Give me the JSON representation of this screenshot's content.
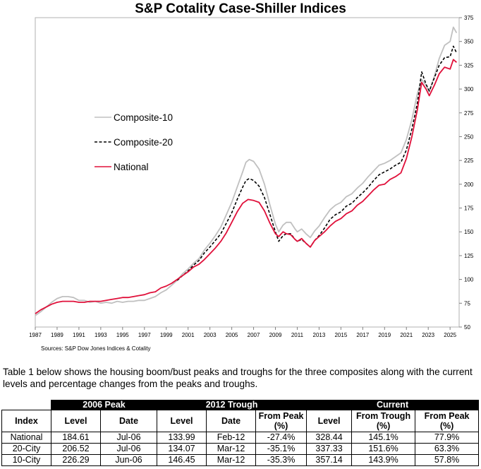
{
  "chart_data": {
    "type": "line",
    "title": "S&P Cotality Case-Shiller Indices",
    "source": "Sources: S&P Dow Jones Indices & Cotality",
    "xlim": [
      1987.0,
      2025.83
    ],
    "ylim": [
      50,
      375
    ],
    "x_ticks": [
      "1987",
      "1989",
      "1991",
      "1993",
      "1995",
      "1997",
      "1999",
      "2001",
      "2003",
      "2005",
      "2007",
      "2009",
      "2011",
      "2013",
      "2015",
      "2017",
      "2019",
      "2021",
      "2023",
      "2025"
    ],
    "y_ticks": [
      "375",
      "350",
      "325",
      "300",
      "275",
      "250",
      "225",
      "200",
      "175",
      "150",
      "125",
      "100",
      "75",
      "50"
    ],
    "legend_position": "center-left",
    "series": [
      {
        "name": "Composite-10",
        "color": "#c0c0c0",
        "dash": "solid",
        "points": [
          [
            1987.0,
            62
          ],
          [
            1987.5,
            66
          ],
          [
            1988.0,
            71
          ],
          [
            1988.5,
            76
          ],
          [
            1989.0,
            80
          ],
          [
            1989.5,
            82
          ],
          [
            1990.0,
            82
          ],
          [
            1990.5,
            81
          ],
          [
            1991.0,
            78
          ],
          [
            1991.5,
            78
          ],
          [
            1992.0,
            76
          ],
          [
            1992.5,
            77
          ],
          [
            1993.0,
            75
          ],
          [
            1993.5,
            76
          ],
          [
            1994.0,
            75
          ],
          [
            1994.5,
            77
          ],
          [
            1995.0,
            76
          ],
          [
            1995.5,
            77
          ],
          [
            1996.0,
            77
          ],
          [
            1996.5,
            78
          ],
          [
            1997.0,
            78
          ],
          [
            1997.5,
            80
          ],
          [
            1998.0,
            82
          ],
          [
            1998.5,
            86
          ],
          [
            1999.0,
            89
          ],
          [
            1999.5,
            94
          ],
          [
            2000.0,
            99
          ],
          [
            2000.5,
            106
          ],
          [
            2001.0,
            111
          ],
          [
            2001.5,
            117
          ],
          [
            2002.0,
            122
          ],
          [
            2002.5,
            131
          ],
          [
            2003.0,
            138
          ],
          [
            2003.5,
            146
          ],
          [
            2004.0,
            155
          ],
          [
            2004.5,
            168
          ],
          [
            2005.0,
            181
          ],
          [
            2005.5,
            197
          ],
          [
            2006.0,
            213
          ],
          [
            2006.3,
            223
          ],
          [
            2006.6,
            226
          ],
          [
            2007.0,
            224
          ],
          [
            2007.5,
            216
          ],
          [
            2008.0,
            200
          ],
          [
            2008.5,
            178
          ],
          [
            2009.0,
            158
          ],
          [
            2009.3,
            150
          ],
          [
            2009.7,
            157
          ],
          [
            2010.0,
            160
          ],
          [
            2010.4,
            160
          ],
          [
            2010.8,
            153
          ],
          [
            2011.0,
            150
          ],
          [
            2011.4,
            153
          ],
          [
            2011.8,
            148
          ],
          [
            2012.2,
            144
          ],
          [
            2012.6,
            151
          ],
          [
            2013.0,
            156
          ],
          [
            2013.5,
            165
          ],
          [
            2014.0,
            173
          ],
          [
            2014.5,
            178
          ],
          [
            2015.0,
            181
          ],
          [
            2015.5,
            187
          ],
          [
            2016.0,
            190
          ],
          [
            2016.5,
            196
          ],
          [
            2017.0,
            201
          ],
          [
            2017.5,
            208
          ],
          [
            2018.0,
            214
          ],
          [
            2018.5,
            220
          ],
          [
            2019.0,
            222
          ],
          [
            2019.5,
            225
          ],
          [
            2020.0,
            229
          ],
          [
            2020.5,
            233
          ],
          [
            2021.0,
            247
          ],
          [
            2021.5,
            268
          ],
          [
            2022.0,
            295
          ],
          [
            2022.4,
            310
          ],
          [
            2022.8,
            304
          ],
          [
            2023.1,
            297
          ],
          [
            2023.6,
            315
          ],
          [
            2024.0,
            332
          ],
          [
            2024.5,
            346
          ],
          [
            2025.0,
            350
          ],
          [
            2025.3,
            365
          ],
          [
            2025.6,
            359
          ]
        ]
      },
      {
        "name": "Composite-20",
        "color": "#000000",
        "dash": "dashed",
        "points": [
          [
            2000.0,
            99
          ],
          [
            2000.5,
            104
          ],
          [
            2001.0,
            109
          ],
          [
            2001.5,
            115
          ],
          [
            2002.0,
            120
          ],
          [
            2002.5,
            128
          ],
          [
            2003.0,
            134
          ],
          [
            2003.5,
            141
          ],
          [
            2004.0,
            148
          ],
          [
            2004.5,
            159
          ],
          [
            2005.0,
            170
          ],
          [
            2005.5,
            184
          ],
          [
            2006.0,
            197
          ],
          [
            2006.3,
            204
          ],
          [
            2006.6,
            206
          ],
          [
            2007.0,
            204
          ],
          [
            2007.5,
            198
          ],
          [
            2008.0,
            186
          ],
          [
            2008.5,
            168
          ],
          [
            2009.0,
            150
          ],
          [
            2009.3,
            140
          ],
          [
            2009.7,
            146
          ],
          [
            2010.0,
            148
          ],
          [
            2010.4,
            148
          ],
          [
            2010.8,
            142
          ],
          [
            2011.0,
            140
          ],
          [
            2011.4,
            142
          ],
          [
            2011.8,
            138
          ],
          [
            2012.2,
            134
          ],
          [
            2012.6,
            141
          ],
          [
            2013.0,
            146
          ],
          [
            2013.5,
            154
          ],
          [
            2014.0,
            163
          ],
          [
            2014.5,
            168
          ],
          [
            2015.0,
            171
          ],
          [
            2015.5,
            177
          ],
          [
            2016.0,
            180
          ],
          [
            2016.5,
            186
          ],
          [
            2017.0,
            191
          ],
          [
            2017.5,
            197
          ],
          [
            2018.0,
            204
          ],
          [
            2018.5,
            210
          ],
          [
            2019.0,
            213
          ],
          [
            2019.5,
            216
          ],
          [
            2020.0,
            220
          ],
          [
            2020.5,
            223
          ],
          [
            2021.0,
            236
          ],
          [
            2021.5,
            258
          ],
          [
            2022.0,
            285
          ],
          [
            2022.4,
            318
          ],
          [
            2022.8,
            305
          ],
          [
            2023.1,
            298
          ],
          [
            2023.6,
            313
          ],
          [
            2024.0,
            325
          ],
          [
            2024.5,
            333
          ],
          [
            2025.0,
            334
          ],
          [
            2025.3,
            345
          ],
          [
            2025.6,
            338
          ]
        ]
      },
      {
        "name": "National",
        "color": "#e0103a",
        "dash": "solid",
        "points": [
          [
            1987.0,
            64
          ],
          [
            1987.5,
            68
          ],
          [
            1988.0,
            71
          ],
          [
            1988.5,
            74
          ],
          [
            1989.0,
            76
          ],
          [
            1989.5,
            77
          ],
          [
            1990.0,
            77
          ],
          [
            1990.5,
            77
          ],
          [
            1991.0,
            76
          ],
          [
            1991.5,
            76
          ],
          [
            1992.0,
            77
          ],
          [
            1992.5,
            77
          ],
          [
            1993.0,
            77
          ],
          [
            1993.5,
            78
          ],
          [
            1994.0,
            79
          ],
          [
            1994.5,
            80
          ],
          [
            1995.0,
            81
          ],
          [
            1995.5,
            81
          ],
          [
            1996.0,
            82
          ],
          [
            1996.5,
            83
          ],
          [
            1997.0,
            84
          ],
          [
            1997.5,
            86
          ],
          [
            1998.0,
            87
          ],
          [
            1998.5,
            91
          ],
          [
            1999.0,
            93
          ],
          [
            1999.5,
            96
          ],
          [
            2000.0,
            100
          ],
          [
            2000.5,
            104
          ],
          [
            2001.0,
            108
          ],
          [
            2001.5,
            113
          ],
          [
            2002.0,
            116
          ],
          [
            2002.5,
            121
          ],
          [
            2003.0,
            127
          ],
          [
            2003.5,
            133
          ],
          [
            2004.0,
            140
          ],
          [
            2004.5,
            149
          ],
          [
            2005.0,
            160
          ],
          [
            2005.5,
            171
          ],
          [
            2006.0,
            180
          ],
          [
            2006.5,
            184
          ],
          [
            2007.0,
            183
          ],
          [
            2007.5,
            181
          ],
          [
            2008.0,
            172
          ],
          [
            2008.5,
            159
          ],
          [
            2009.0,
            148
          ],
          [
            2009.3,
            145
          ],
          [
            2009.7,
            150
          ],
          [
            2010.0,
            148
          ],
          [
            2010.4,
            147
          ],
          [
            2010.8,
            142
          ],
          [
            2011.0,
            140
          ],
          [
            2011.4,
            143
          ],
          [
            2011.8,
            138
          ],
          [
            2012.2,
            134
          ],
          [
            2012.6,
            141
          ],
          [
            2013.0,
            145
          ],
          [
            2013.5,
            150
          ],
          [
            2014.0,
            156
          ],
          [
            2014.5,
            161
          ],
          [
            2015.0,
            164
          ],
          [
            2015.5,
            169
          ],
          [
            2016.0,
            172
          ],
          [
            2016.5,
            178
          ],
          [
            2017.0,
            182
          ],
          [
            2017.5,
            188
          ],
          [
            2018.0,
            194
          ],
          [
            2018.5,
            199
          ],
          [
            2019.0,
            200
          ],
          [
            2019.5,
            205
          ],
          [
            2020.0,
            208
          ],
          [
            2020.5,
            212
          ],
          [
            2021.0,
            227
          ],
          [
            2021.5,
            250
          ],
          [
            2022.0,
            278
          ],
          [
            2022.4,
            307
          ],
          [
            2022.8,
            300
          ],
          [
            2023.1,
            293
          ],
          [
            2023.6,
            305
          ],
          [
            2024.0,
            316
          ],
          [
            2024.5,
            323
          ],
          [
            2025.0,
            321
          ],
          [
            2025.3,
            331
          ],
          [
            2025.6,
            328
          ]
        ]
      }
    ]
  },
  "description": "Table 1 below shows the housing boom/bust peaks and troughs for the three composites along with the current levels and percentage changes from the peaks and troughs.",
  "table": {
    "groups": [
      "2006 Peak",
      "2012 Trough",
      "Current"
    ],
    "headers": [
      "Index",
      "Level",
      "Date",
      "Level",
      "Date",
      "From Peak (%)",
      "Level",
      "From Trough (%)",
      "From Peak (%)"
    ],
    "rows": [
      [
        "National",
        "184.61",
        "Jul-06",
        "133.99",
        "Feb-12",
        "-27.4%",
        "328.44",
        "145.1%",
        "77.9%"
      ],
      [
        "20-City",
        "206.52",
        "Jul-06",
        "134.07",
        "Mar-12",
        "-35.1%",
        "337.33",
        "151.6%",
        "63.3%"
      ],
      [
        "10-City",
        "226.29",
        "Jun-06",
        "146.45",
        "Mar-12",
        "-35.3%",
        "357.14",
        "143.9%",
        "57.8%"
      ]
    ]
  }
}
